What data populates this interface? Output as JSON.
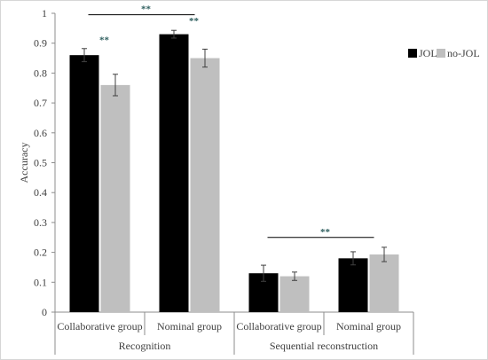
{
  "chart_data": {
    "type": "bar",
    "ylabel": "Accuracy",
    "ylim": [
      0,
      1
    ],
    "yticks": [
      "0",
      "0.1",
      "0.2",
      "0.3",
      "0.4",
      "0.5",
      "0.6",
      "0.7",
      "0.8",
      "0.9",
      "1"
    ],
    "groups": [
      {
        "label": "Recognition",
        "categories": [
          "Collaborative group",
          "Nominal group"
        ]
      },
      {
        "label": "Sequential reconstruction",
        "categories": [
          "Collaborative group",
          "Nominal group"
        ]
      }
    ],
    "series": [
      {
        "name": "JOL",
        "color": "#000000",
        "values": [
          0.86,
          0.93,
          0.13,
          0.18
        ],
        "errors": [
          0.022,
          0.013,
          0.027,
          0.022
        ]
      },
      {
        "name": "no-JOL",
        "color": "#bfbfbf",
        "values": [
          0.76,
          0.85,
          0.12,
          0.193
        ],
        "errors": [
          0.036,
          0.03,
          0.014,
          0.024
        ]
      }
    ],
    "annotations": [
      {
        "text": "**",
        "kind": "bracket",
        "from_category": 0,
        "to_category": 1,
        "y": 0.995
      },
      {
        "text": "**",
        "kind": "pair",
        "category": 0,
        "y": 0.9
      },
      {
        "text": "**",
        "kind": "pair",
        "category": 1,
        "y": 0.965
      },
      {
        "text": "**",
        "kind": "bracket",
        "from_category": 2,
        "to_category": 3,
        "y": 0.25
      }
    ],
    "legend_position": "top-right",
    "grid": false
  }
}
